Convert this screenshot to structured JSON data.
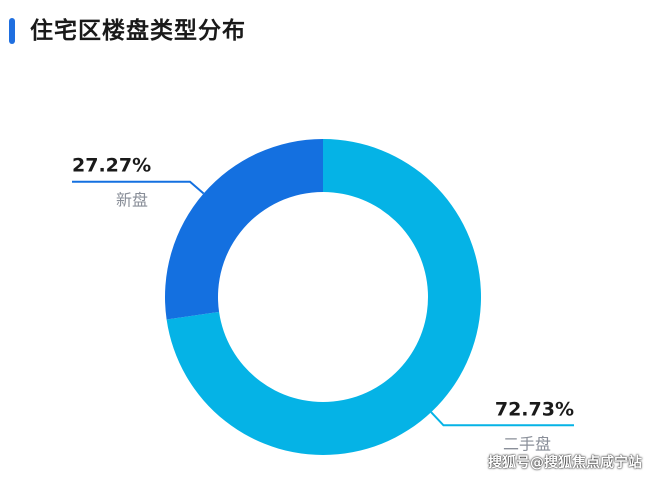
{
  "header": {
    "title": "住宅区楼盘类型分布"
  },
  "chart_data": {
    "type": "pie",
    "variant": "donut",
    "title": "住宅区楼盘类型分布",
    "slices": [
      {
        "name": "新盘",
        "value": 27.27,
        "label": "27.27%",
        "color": "#1470e0"
      },
      {
        "name": "二手盘",
        "value": 72.73,
        "label": "72.73%",
        "color": "#05b3e6"
      }
    ],
    "start_angle": "top, counter-clockwise for 新盘"
  },
  "watermark": "搜狐号@搜狐焦点咸宁站",
  "colors": {
    "accent": "#1f6fe0",
    "slice_new": "#1470e0",
    "slice_resale": "#05b3e6"
  }
}
